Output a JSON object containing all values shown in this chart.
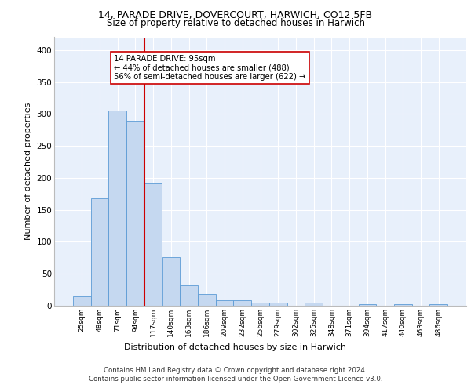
{
  "title1": "14, PARADE DRIVE, DOVERCOURT, HARWICH, CO12 5FB",
  "title2": "Size of property relative to detached houses in Harwich",
  "xlabel": "Distribution of detached houses by size in Harwich",
  "ylabel": "Number of detached properties",
  "categories": [
    "25sqm",
    "48sqm",
    "71sqm",
    "94sqm",
    "117sqm",
    "140sqm",
    "163sqm",
    "186sqm",
    "209sqm",
    "232sqm",
    "256sqm",
    "279sqm",
    "302sqm",
    "325sqm",
    "348sqm",
    "371sqm",
    "394sqm",
    "417sqm",
    "440sqm",
    "463sqm",
    "486sqm"
  ],
  "values": [
    15,
    168,
    305,
    289,
    191,
    76,
    32,
    18,
    9,
    9,
    5,
    5,
    0,
    5,
    0,
    0,
    3,
    0,
    3,
    0,
    3
  ],
  "bar_color": "#c5d8f0",
  "bar_edge_color": "#5b9bd5",
  "vline_x_index": 3,
  "vline_color": "#cc0000",
  "annotation_text": "14 PARADE DRIVE: 95sqm\n← 44% of detached houses are smaller (488)\n56% of semi-detached houses are larger (622) →",
  "annotation_box_color": "#ffffff",
  "annotation_box_edge": "#cc0000",
  "ylim": [
    0,
    420
  ],
  "yticks": [
    0,
    50,
    100,
    150,
    200,
    250,
    300,
    350,
    400
  ],
  "background_color": "#e8f0fb",
  "grid_color": "#ffffff",
  "footer": "Contains HM Land Registry data © Crown copyright and database right 2024.\nContains public sector information licensed under the Open Government Licence v3.0."
}
